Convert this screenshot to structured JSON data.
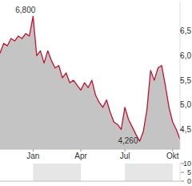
{
  "chart_data": [
    {
      "type": "area",
      "color": "#c8102e",
      "grid": false,
      "categories": [
        null,
        null,
        null,
        null,
        null,
        null,
        null,
        null,
        null,
        "Jan",
        null,
        null,
        null,
        null,
        null,
        null,
        null,
        null,
        null,
        null,
        null,
        null,
        "Apr",
        null,
        null,
        null,
        null,
        null,
        null,
        null,
        null,
        null,
        null,
        null,
        "Jul",
        null,
        null,
        null,
        null,
        null,
        null,
        null,
        null,
        null,
        null,
        null,
        null,
        "Okt",
        null,
        null
      ],
      "values": [
        6.05,
        6.25,
        6.2,
        6.35,
        6.3,
        6.4,
        6.35,
        6.45,
        6.4,
        6.8,
        6.0,
        6.1,
        5.85,
        6.1,
        5.9,
        5.75,
        5.8,
        5.55,
        5.65,
        5.45,
        5.5,
        5.4,
        5.3,
        5.45,
        5.35,
        5.5,
        5.2,
        5.05,
        4.95,
        5.1,
        4.85,
        4.65,
        4.6,
        4.5,
        4.95,
        4.7,
        4.55,
        4.4,
        4.26,
        4.45,
        4.9,
        5.7,
        5.5,
        5.75,
        5.8,
        5.4,
        4.95,
        4.65,
        4.5,
        4.3
      ],
      "ylim": [
        4.1,
        7.1
      ],
      "yticks": [
        {
          "value": 4.5,
          "label": "4,5"
        },
        {
          "value": 5.0,
          "label": "5,0"
        },
        {
          "value": 5.5,
          "label": "5,5"
        },
        {
          "value": 6.0,
          "label": "6,0"
        },
        {
          "value": 6.5,
          "label": "6,5"
        }
      ],
      "annotations": [
        {
          "value": 6.8,
          "label": "6,800"
        },
        {
          "value": 4.26,
          "label": "4,260"
        }
      ]
    },
    {
      "type": "bar",
      "ylim": [
        0,
        10
      ],
      "yticks": [
        0,
        5,
        10
      ]
    }
  ]
}
